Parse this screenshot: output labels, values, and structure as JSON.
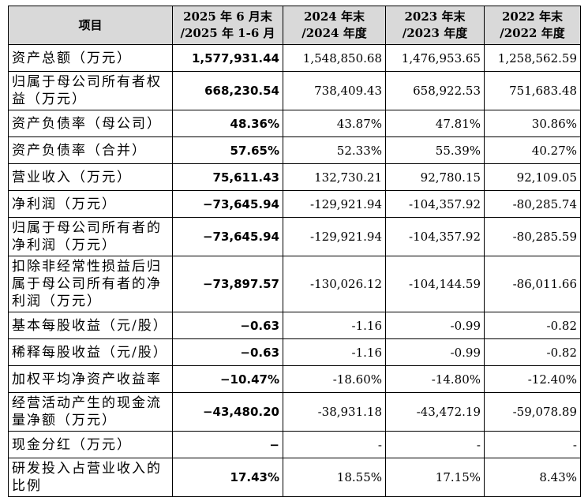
{
  "table": {
    "header": [
      [
        "项目"
      ],
      [
        "2025 年 6 月末",
        "/2025 年 1-6 月"
      ],
      [
        "2024 年末",
        "/2024 年度"
      ],
      [
        "2023 年末",
        "/2023 年度"
      ],
      [
        "2022 年末",
        "/2022 年度"
      ]
    ],
    "rows": [
      [
        "资产总额（万元）",
        "1,577,931.44",
        "1,548,850.68",
        "1,476,953.65",
        "1,258,562.59"
      ],
      [
        "归属于母公司所有者权益（万元）",
        "668,230.54",
        "738,409.43",
        "658,922.53",
        "751,683.48"
      ],
      [
        "资产负债率（母公司）",
        "48.36%",
        "43.87%",
        "47.81%",
        "30.86%"
      ],
      [
        "资产负债率（合并）",
        "57.65%",
        "52.33%",
        "55.39%",
        "40.27%"
      ],
      [
        "营业收入（万元）",
        "75,611.43",
        "132,730.21",
        "92,780.15",
        "92,109.05"
      ],
      [
        "净利润（万元）",
        "−73,645.94",
        "-129,921.94",
        "-104,357.92",
        "-80,285.74"
      ],
      [
        "归属于母公司所有者的净利润（万元）",
        "−73,645.94",
        "-129,921.94",
        "-104,357.92",
        "-80,285.59"
      ],
      [
        "扣除非经常性损益后归属于母公司所有者的净利润（万元）",
        "−73,897.57",
        "-130,026.12",
        "-104,144.59",
        "-86,011.66"
      ],
      [
        "基本每股收益（元/股）",
        "−0.63",
        "-1.16",
        "-0.99",
        "-0.82"
      ],
      [
        "稀释每股收益（元/股）",
        "−0.63",
        "-1.16",
        "-0.99",
        "-0.82"
      ],
      [
        "加权平均净资产收益率",
        "−10.47%",
        "-18.60%",
        "-14.80%",
        "-12.40%"
      ],
      [
        "经营活动产生的现金流量净额（万元）",
        "−43,480.20",
        "-38,931.18",
        "-43,472.19",
        "-59,078.89"
      ],
      [
        "现金分红（万元）",
        "−",
        "-",
        "-",
        "-"
      ],
      [
        "研发投入占营业收入的比例",
        "17.43%",
        "18.55%",
        "17.15%",
        "8.43%"
      ]
    ]
  }
}
